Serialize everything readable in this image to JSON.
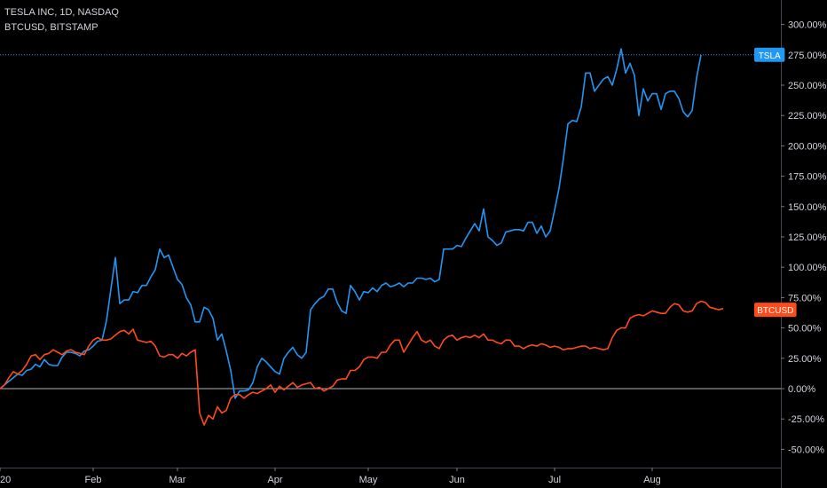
{
  "legend": {
    "line1": "TESLA INC, 1D, NASDAQ",
    "line2": "BTCUSD, BITSTAMP"
  },
  "chart_data": {
    "type": "line",
    "x_unit": "trading days from start (date axis, year 2020)",
    "x_ticks": [
      {
        "label": "20",
        "x": 0
      },
      {
        "label": "Feb",
        "x": 21
      },
      {
        "label": "Mar",
        "x": 40
      },
      {
        "label": "Apr",
        "x": 62
      },
      {
        "label": "May",
        "x": 83
      },
      {
        "label": "Jun",
        "x": 103
      },
      {
        "label": "Jul",
        "x": 125
      },
      {
        "label": "Aug",
        "x": 147
      }
    ],
    "y_ticks": [
      "300.00%",
      "275.00%",
      "250.00%",
      "225.00%",
      "200.00%",
      "175.00%",
      "150.00%",
      "125.00%",
      "100.00%",
      "75.00%",
      "50.00%",
      "25.00%",
      "0.00%",
      "-25.00%",
      "-50.00%"
    ],
    "ylim": [
      -55,
      315
    ],
    "xlim": [
      0,
      174
    ],
    "zero_line": 0,
    "series": [
      {
        "name": "TSLA",
        "color": "#2196f3",
        "label_value": 275,
        "values": [
          0,
          3,
          6,
          9,
          12,
          11,
          15,
          16,
          20,
          18,
          24,
          20,
          19,
          19,
          26,
          30,
          30,
          29,
          27,
          31,
          32,
          35,
          39,
          40,
          56,
          82,
          108,
          70,
          73,
          73,
          80,
          79,
          85,
          85,
          92,
          98,
          115,
          108,
          110,
          100,
          90,
          86,
          75,
          69,
          55,
          55,
          67,
          65,
          58,
          40,
          45,
          31,
          15,
          -8,
          -2,
          -2,
          -1,
          5,
          18,
          25,
          22,
          18,
          14,
          12,
          25,
          30,
          34,
          28,
          25,
          30,
          65,
          70,
          74,
          76,
          82,
          82,
          71,
          64,
          62,
          85,
          80,
          73,
          80,
          79,
          83,
          80,
          85,
          87,
          84,
          85,
          87,
          84,
          87,
          87,
          91,
          91,
          90,
          91,
          88,
          90,
          115,
          115,
          115,
          118,
          117,
          124,
          130,
          136,
          130,
          148,
          125,
          122,
          118,
          120,
          129,
          130,
          131,
          131,
          130,
          137,
          137,
          128,
          134,
          125,
          130,
          147,
          165,
          190,
          218,
          221,
          220,
          232,
          260,
          260,
          245,
          250,
          255,
          257,
          250,
          263,
          280,
          260,
          268,
          258,
          225,
          247,
          237,
          243,
          243,
          230,
          243,
          245,
          245,
          239,
          228,
          224,
          229,
          256,
          275
        ],
        "x_values_note": "one value per trading day starting at x=0"
      },
      {
        "name": "BTCUSD",
        "color": "#ff4a1a",
        "label_value": 65,
        "values": [
          0,
          3,
          9,
          14,
          12,
          15,
          20,
          27,
          28,
          24,
          28,
          29,
          32,
          30,
          28,
          31,
          32,
          30,
          29,
          28,
          35,
          40,
          42,
          40,
          40,
          41,
          44,
          47,
          48,
          45,
          49,
          40,
          39,
          38,
          39,
          35,
          27,
          26,
          28,
          28,
          25,
          29,
          27,
          30,
          32,
          -20,
          -30,
          -22,
          -25,
          -15,
          -20,
          -18,
          -8,
          -5,
          -5,
          -8,
          -5,
          -3,
          -4,
          -2,
          0,
          3,
          -3,
          2,
          -1,
          2,
          5,
          1,
          3,
          4,
          5,
          0,
          1,
          -2,
          0,
          2,
          7,
          8,
          8,
          15,
          15,
          18,
          24,
          26,
          26,
          25,
          30,
          30,
          36,
          40,
          40,
          30,
          36,
          42,
          47,
          40,
          38,
          40,
          35,
          33,
          40,
          43,
          44,
          40,
          42,
          43,
          42,
          44,
          42,
          45,
          40,
          40,
          38,
          37,
          40,
          40,
          35,
          35,
          33,
          35,
          36,
          35,
          37,
          36,
          34,
          35,
          34,
          32,
          33,
          33,
          34,
          35,
          35,
          33,
          34,
          33,
          32,
          33,
          42,
          48,
          50,
          50,
          58,
          60,
          61,
          60,
          62,
          64,
          63,
          62,
          62,
          67,
          70,
          69,
          64,
          63,
          64,
          70,
          72,
          71,
          67,
          66,
          65,
          66
        ]
      }
    ]
  }
}
